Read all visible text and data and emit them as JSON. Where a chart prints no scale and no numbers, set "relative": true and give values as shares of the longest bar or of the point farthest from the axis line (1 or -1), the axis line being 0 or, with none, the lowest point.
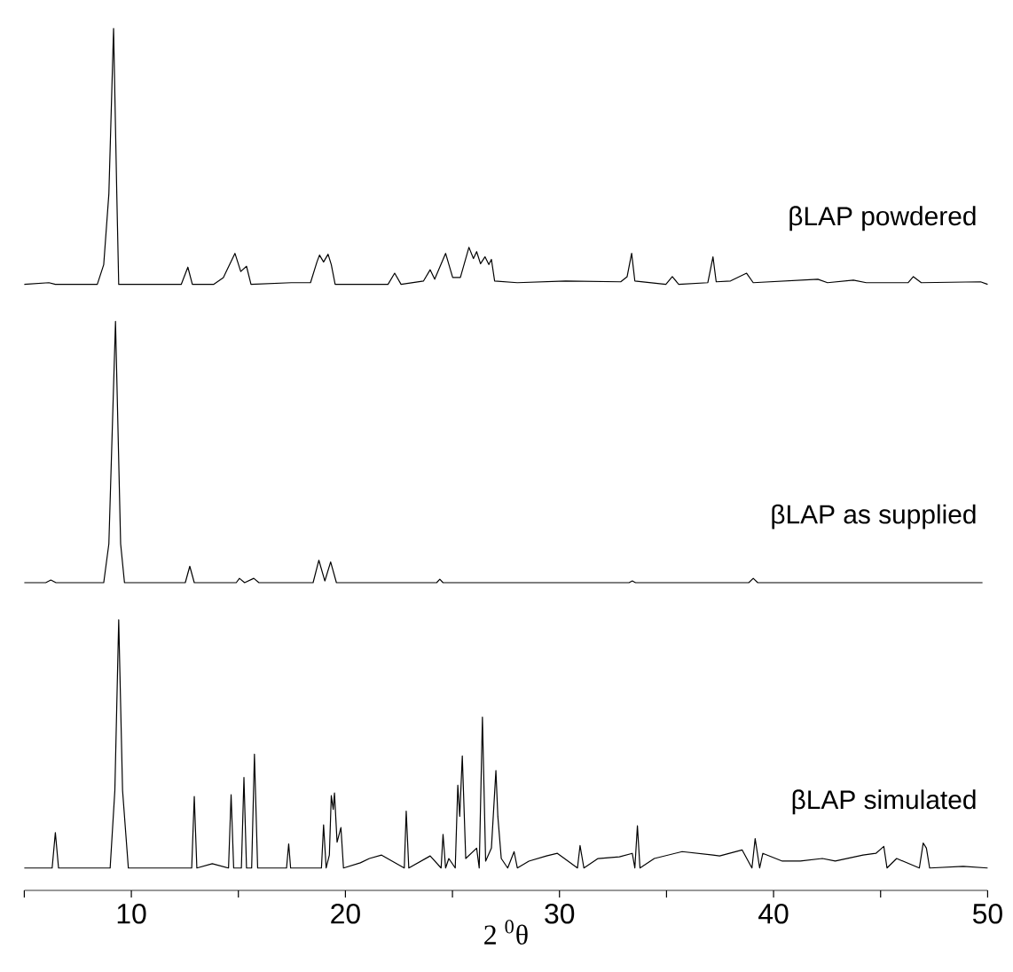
{
  "chart_data": {
    "type": "line",
    "relative": true,
    "xlabel": "2 $^{0}$θ",
    "xlim": [
      5,
      50
    ],
    "xticks": [
      {
        "value": 5,
        "label": null
      },
      10,
      {
        "value": 15,
        "label": null
      },
      20,
      {
        "value": 25,
        "label": null
      },
      30,
      {
        "value": 35,
        "label": null
      },
      40,
      {
        "value": 45,
        "label": null
      },
      50
    ],
    "tick_labels": "x",
    "line_style": "solid",
    "marker": "none",
    "series": [
      {
        "name": "βLAP powdered",
        "color": "#000000",
        "x": [
          5.0,
          6.15,
          6.45,
          8.41,
          8.71,
          8.95,
          9.17,
          9.32,
          9.41,
          12.33,
          12.64,
          12.85,
          13.84,
          14.3,
          14.84,
          15.11,
          15.38,
          15.59,
          17.47,
          18.37,
          18.67,
          18.79,
          18.98,
          19.19,
          19.34,
          19.52,
          21.99,
          22.3,
          22.6,
          23.65,
          23.96,
          24.17,
          24.68,
          25.01,
          25.37,
          25.77,
          25.98,
          26.13,
          26.31,
          26.52,
          26.7,
          26.82,
          26.97,
          28.03,
          30.29,
          32.86,
          33.16,
          33.37,
          33.52,
          34.97,
          35.27,
          35.57,
          36.93,
          37.17,
          37.32,
          37.99,
          38.74,
          39.05,
          42.07,
          42.52,
          43.73,
          44.33,
          46.29,
          46.53,
          46.9,
          49.67,
          50.0
        ],
        "values": [
          0.703,
          0.705,
          0.703,
          0.703,
          0.726,
          0.808,
          1.0,
          0.808,
          0.703,
          0.703,
          0.723,
          0.703,
          0.703,
          0.711,
          0.739,
          0.718,
          0.724,
          0.703,
          0.705,
          0.705,
          0.729,
          0.737,
          0.729,
          0.738,
          0.726,
          0.703,
          0.703,
          0.716,
          0.703,
          0.707,
          0.72,
          0.709,
          0.739,
          0.711,
          0.711,
          0.746,
          0.733,
          0.741,
          0.727,
          0.735,
          0.726,
          0.732,
          0.707,
          0.705,
          0.707,
          0.706,
          0.712,
          0.739,
          0.707,
          0.703,
          0.712,
          0.703,
          0.705,
          0.735,
          0.706,
          0.707,
          0.716,
          0.705,
          0.709,
          0.705,
          0.708,
          0.705,
          0.705,
          0.712,
          0.705,
          0.706,
          0.703
        ]
      },
      {
        "name": "βLAP as supplied",
        "color": "#000000",
        "x": [
          5.0,
          6.0,
          6.24,
          6.48,
          8.71,
          8.95,
          9.26,
          9.5,
          9.68,
          12.52,
          12.73,
          12.94,
          14.9,
          15.05,
          15.29,
          15.72,
          15.96,
          18.49,
          18.76,
          19.04,
          19.31,
          19.58,
          24.26,
          24.41,
          24.56,
          33.25,
          33.4,
          33.55,
          38.84,
          39.05,
          39.26,
          49.76
        ],
        "values": [
          0.357,
          0.357,
          0.36,
          0.357,
          0.357,
          0.402,
          0.66,
          0.402,
          0.357,
          0.357,
          0.376,
          0.357,
          0.357,
          0.362,
          0.357,
          0.362,
          0.357,
          0.357,
          0.383,
          0.359,
          0.381,
          0.357,
          0.357,
          0.361,
          0.357,
          0.357,
          0.359,
          0.357,
          0.357,
          0.362,
          0.357,
          0.357
        ]
      },
      {
        "name": "βLAP simulated",
        "color": "#000000",
        "x": [
          5.0,
          6.3,
          6.45,
          6.6,
          9.01,
          9.23,
          9.41,
          9.59,
          9.86,
          12.82,
          12.94,
          13.06,
          13.78,
          14.54,
          14.66,
          14.78,
          15.14,
          15.26,
          15.38,
          15.62,
          15.75,
          15.9,
          17.25,
          17.35,
          17.44,
          18.88,
          18.98,
          19.1,
          19.25,
          19.34,
          19.43,
          19.49,
          19.61,
          19.79,
          19.91,
          20.7,
          21.12,
          21.69,
          22.75,
          22.84,
          22.96,
          23.96,
          24.47,
          24.56,
          24.68,
          24.83,
          25.13,
          25.25,
          25.34,
          25.46,
          25.62,
          26.13,
          26.25,
          26.4,
          26.55,
          26.82,
          27.03,
          27.12,
          27.28,
          27.58,
          27.88,
          28.03,
          28.57,
          29.39,
          29.9,
          30.23,
          30.84,
          30.96,
          31.14,
          31.8,
          32.8,
          33.4,
          33.52,
          33.64,
          33.76,
          34.43,
          35.73,
          37.17,
          37.48,
          38.53,
          38.99,
          39.14,
          39.35,
          39.5,
          40.41,
          41.25,
          42.28,
          42.88,
          44.18,
          44.78,
          45.15,
          45.3,
          45.75,
          46.81,
          46.99,
          47.14,
          47.29,
          48.86,
          50.0
        ],
        "values": [
          0.026,
          0.026,
          0.067,
          0.026,
          0.026,
          0.116,
          0.314,
          0.116,
          0.026,
          0.026,
          0.109,
          0.026,
          0.031,
          0.026,
          0.111,
          0.026,
          0.026,
          0.131,
          0.026,
          0.026,
          0.158,
          0.026,
          0.026,
          0.054,
          0.026,
          0.026,
          0.076,
          0.026,
          0.041,
          0.11,
          0.094,
          0.113,
          0.056,
          0.073,
          0.026,
          0.032,
          0.037,
          0.041,
          0.026,
          0.092,
          0.026,
          0.04,
          0.026,
          0.065,
          0.026,
          0.037,
          0.026,
          0.122,
          0.086,
          0.156,
          0.037,
          0.049,
          0.026,
          0.201,
          0.034,
          0.049,
          0.139,
          0.086,
          0.037,
          0.026,
          0.045,
          0.026,
          0.034,
          0.04,
          0.043,
          0.037,
          0.026,
          0.052,
          0.026,
          0.037,
          0.039,
          0.043,
          0.026,
          0.075,
          0.026,
          0.037,
          0.045,
          0.041,
          0.04,
          0.047,
          0.026,
          0.06,
          0.026,
          0.043,
          0.034,
          0.034,
          0.037,
          0.034,
          0.041,
          0.043,
          0.051,
          0.026,
          0.037,
          0.026,
          0.055,
          0.049,
          0.026,
          0.028,
          0.026
        ]
      }
    ]
  }
}
